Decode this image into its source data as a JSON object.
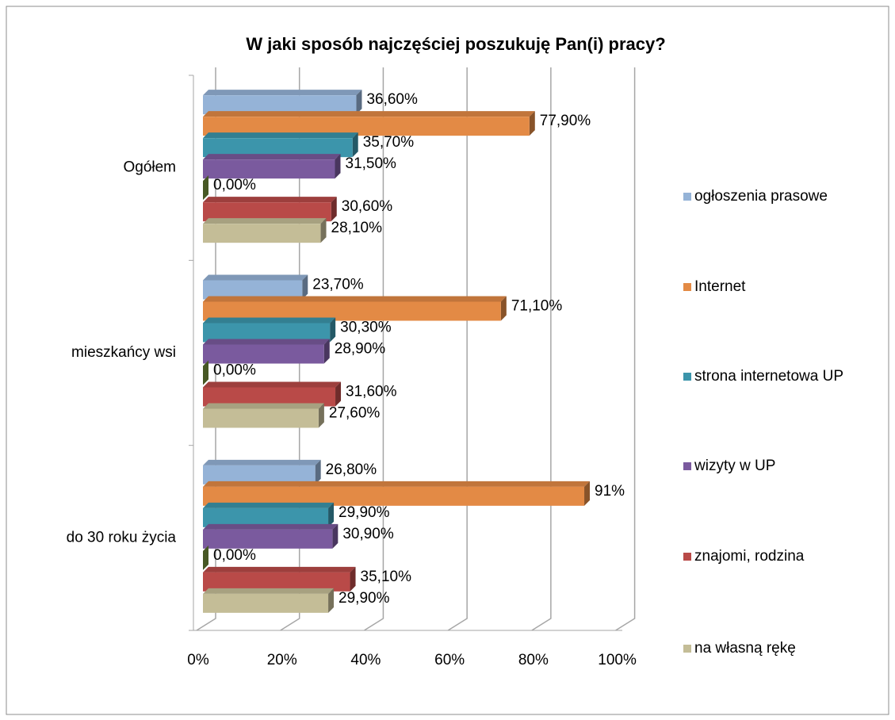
{
  "chart_data": {
    "type": "hbar3d",
    "title": "W jaki sposób najczęściej poszukuję Pan(i) pracy?",
    "categories": [
      "Ogółem",
      "mieszkańcy wsi",
      "do 30 roku życia"
    ],
    "series": [
      {
        "name": "ogłoszenia prasowe",
        "color": "#95b3d7",
        "values": [
          36.6,
          23.7,
          26.8
        ],
        "value_labels": [
          "36,60%",
          "23,70%",
          "26,80%"
        ]
      },
      {
        "name": "Internet",
        "color": "#e38a45",
        "values": [
          77.9,
          71.1,
          91
        ],
        "value_labels": [
          "77,90%",
          "71,10%",
          "91%"
        ]
      },
      {
        "name": "strona internetowa UP",
        "color": "#3c95ab",
        "values": [
          35.7,
          30.3,
          29.9
        ],
        "value_labels": [
          "35,70%",
          "30,30%",
          "29,90%"
        ]
      },
      {
        "name": "wizyty w UP",
        "color": "#7a5a9e",
        "values": [
          31.5,
          28.9,
          30.9
        ],
        "value_labels": [
          "31,50%",
          "28,90%",
          "30,90%"
        ]
      },
      {
        "color": "#77933c",
        "values": [
          0,
          0,
          0
        ],
        "value_labels": [
          "0,00%",
          "0,00%",
          "0,00%"
        ]
      },
      {
        "name": "znajomi, rodzina",
        "color": "#b94a48",
        "values": [
          30.6,
          31.6,
          35.1
        ],
        "value_labels": [
          "30,60%",
          "31,60%",
          "35,10%"
        ]
      },
      {
        "name": "na własną rękę",
        "color": "#c4bd97",
        "values": [
          28.1,
          27.6,
          29.9
        ],
        "value_labels": [
          "28,10%",
          "27,60%",
          "29,90%"
        ]
      }
    ],
    "xlim": [
      0,
      100
    ],
    "xticks": [
      {
        "value": 0,
        "label": "0%"
      },
      {
        "value": 20,
        "label": "20%"
      },
      {
        "value": 40,
        "label": "40%"
      },
      {
        "value": 60,
        "label": "60%"
      },
      {
        "value": 80,
        "label": "80%"
      },
      {
        "value": 100,
        "label": "100%"
      }
    ],
    "grid": true,
    "legend": "right"
  }
}
